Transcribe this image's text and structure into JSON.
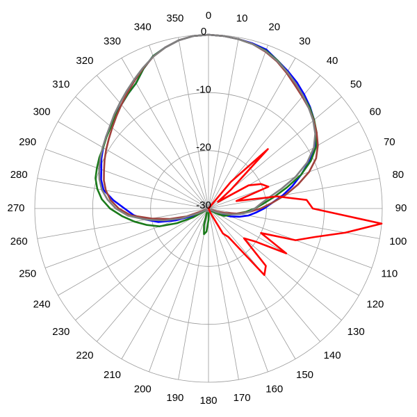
{
  "chart_data": {
    "type": "polar",
    "direction": "clockwise",
    "zero": "top",
    "rlim": [
      -30,
      0
    ],
    "rticks": [
      -30,
      -20,
      -10,
      0
    ],
    "thetaticks": [
      0,
      10,
      20,
      30,
      40,
      50,
      60,
      70,
      80,
      90,
      100,
      110,
      120,
      130,
      140,
      150,
      160,
      170,
      180,
      190,
      200,
      210,
      220,
      230,
      240,
      250,
      260,
      270,
      280,
      290,
      300,
      310,
      320,
      330,
      340,
      350
    ],
    "theta": [
      0,
      5,
      10,
      15,
      20,
      25,
      30,
      35,
      40,
      45,
      50,
      55,
      60,
      65,
      70,
      75,
      80,
      85,
      90,
      95,
      100,
      105,
      110,
      115,
      120,
      125,
      130,
      135,
      140,
      145,
      150,
      155,
      160,
      165,
      170,
      175,
      180,
      185,
      190,
      195,
      200,
      205,
      210,
      215,
      220,
      225,
      230,
      235,
      240,
      245,
      250,
      255,
      260,
      265,
      270,
      275,
      280,
      285,
      290,
      295,
      300,
      305,
      310,
      315,
      320,
      325,
      330,
      335,
      340,
      345,
      350,
      355
    ],
    "series": [
      {
        "color": "#0000ff",
        "values": [
          0,
          -0.1,
          -0.3,
          -0.5,
          -0.8,
          -1.8,
          -2.6,
          -3.4,
          -4.3,
          -5.2,
          -6.2,
          -7.4,
          -8.8,
          -10.8,
          -13,
          -15,
          -17,
          -19,
          -20.4,
          -21.8,
          -23,
          -24.5,
          -26,
          -27.5,
          -28.5,
          -29,
          -29.5,
          -29.5,
          -29.5,
          -29.5,
          -29.5,
          -29.5,
          -29.5,
          -29.5,
          -29.5,
          -29.5,
          -29.5,
          -29.5,
          -29.5,
          -29.5,
          -29.5,
          -29.5,
          -29.5,
          -29.5,
          -29.5,
          -29.5,
          -29.5,
          -29.5,
          -29.5,
          -27,
          -24,
          -21,
          -19,
          -17,
          -15.5,
          -13.5,
          -11.6,
          -10.8,
          -10.3,
          -9.6,
          -9,
          -8.4,
          -7.9,
          -7.2,
          -6.6,
          -5.8,
          -5,
          -3.4,
          -2,
          -1.2,
          -0.5,
          -0.1
        ]
      },
      {
        "color": "#1a7a1a",
        "values": [
          0,
          -0.1,
          -0.3,
          -0.6,
          -1,
          -1.8,
          -2.8,
          -3.8,
          -4.6,
          -5.3,
          -6.2,
          -7.2,
          -8.5,
          -10.5,
          -13,
          -16,
          -18.5,
          -20.5,
          -22,
          -23.5,
          -25,
          -26,
          -26.5,
          -27,
          -28,
          -29,
          -29.5,
          -29.5,
          -29.5,
          -29.5,
          -29.5,
          -29.5,
          -29.5,
          -29.5,
          -29.5,
          -29.5,
          -28,
          -26,
          -25.5,
          -27,
          -29,
          -29.5,
          -29.5,
          -29.5,
          -29.5,
          -29.5,
          -29.5,
          -29.5,
          -27,
          -24,
          -21,
          -19,
          -17,
          -15,
          -13,
          -11.5,
          -10.5,
          -9.8,
          -9.5,
          -9.2,
          -9,
          -8.5,
          -8,
          -7.3,
          -6.6,
          -5.8,
          -5,
          -3.4,
          -2,
          -1.2,
          -0.5,
          -0.1
        ]
      },
      {
        "color": "#a0413c",
        "values": [
          0,
          -0.1,
          -0.3,
          -0.6,
          -1.2,
          -2,
          -3,
          -4,
          -4.8,
          -5.5,
          -6.3,
          -7.2,
          -8.2,
          -9.5,
          -11.5,
          -14,
          -16.5,
          -19,
          -21,
          -23,
          -25,
          -27,
          -28.5,
          -29.5,
          -29.5,
          -29.5,
          -29.5,
          -29.5,
          -29.5,
          -29.5,
          -29.5,
          -29.5,
          -29.5,
          -29.5,
          -29.5,
          -29.5,
          -29.5,
          -29.5,
          -29.5,
          -29.5,
          -29.5,
          -29.5,
          -29.5,
          -29.5,
          -29.5,
          -29.5,
          -29.5,
          -29.5,
          -29.5,
          -29.5,
          -26,
          -23,
          -20,
          -16.5,
          -14.5,
          -13,
          -12,
          -11.3,
          -10.8,
          -10.2,
          -9.6,
          -9,
          -8.3,
          -7.5,
          -6.6,
          -5.6,
          -4.5,
          -3.3,
          -2.1,
          -1.2,
          -0.5,
          -0.1
        ]
      },
      {
        "color": "#808080",
        "values": [
          0,
          -0.1,
          -0.3,
          -0.6,
          -1.1,
          -1.9,
          -2.8,
          -3.7,
          -4.6,
          -5.5,
          -6.4,
          -7.5,
          -9,
          -11.2,
          -14,
          -17,
          -19.5,
          -21,
          -22,
          -23,
          -24.5,
          -26,
          -27.5,
          -28.5,
          -29.5,
          -29.5,
          -29.5,
          -29.5,
          -29.5,
          -29.5,
          -29.5,
          -29.5,
          -29.5,
          -29.5,
          -29.5,
          -29.5,
          -29.5,
          -29.5,
          -29.5,
          -29.5,
          -29.5,
          -29.5,
          -29.5,
          -29.5,
          -29.5,
          -29.5,
          -29.5,
          -29.5,
          -29.5,
          -28,
          -25,
          -22,
          -19,
          -16,
          -14,
          -12.5,
          -11.3,
          -10.5,
          -9.9,
          -9.4,
          -8.9,
          -8.4,
          -7.8,
          -7,
          -6.2,
          -5.3,
          -4.3,
          -3.2,
          -2.1,
          -1.2,
          -0.5,
          -0.1
        ]
      },
      {
        "color": "#ff0000",
        "values": [
          -30,
          -30,
          -30,
          -30,
          -30,
          -30,
          -30,
          -30,
          -24,
          -15.5,
          -25,
          -28,
          -22,
          -20,
          -19,
          -25,
          -18,
          -13,
          -12,
          0,
          -6,
          -11,
          -14,
          -20,
          -14.5,
          -20,
          -22,
          -16,
          -15,
          -24,
          -25,
          -29,
          -30,
          -30,
          -30,
          -30,
          -30,
          -30,
          -30,
          -30,
          -30,
          -30,
          -30,
          -30,
          -30,
          -30,
          -30,
          -30,
          -30,
          -30,
          -30,
          -30,
          -30,
          -30,
          -30,
          -30,
          -30,
          -30,
          -30,
          -30,
          -30,
          -30,
          -30,
          -30,
          -30,
          -30,
          -30,
          -30,
          -30,
          -30,
          -30,
          -30
        ]
      }
    ]
  }
}
